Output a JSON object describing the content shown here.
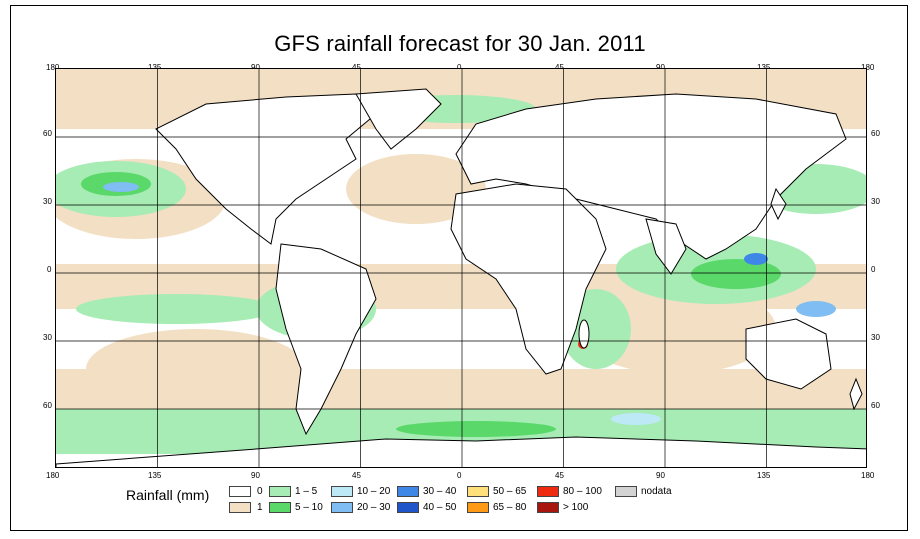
{
  "title": "GFS rainfall forecast for 30 Jan. 2011",
  "axes": {
    "lon_ticks_top": [
      "180",
      "135",
      "90",
      "45",
      "0",
      "45",
      "90",
      "135",
      "180"
    ],
    "lon_ticks_bottom": [
      "180",
      "135",
      "90",
      "45",
      "0",
      "45",
      "90",
      "135",
      "180"
    ],
    "lat_ticks_left": [
      "60",
      "30",
      "0",
      "30",
      "60"
    ],
    "lat_ticks_right": [
      "60",
      "30",
      "0",
      "30",
      "60"
    ]
  },
  "legend": {
    "title": "Rainfall (mm)",
    "items": [
      {
        "label": "0",
        "color": "#ffffff"
      },
      {
        "label": "1",
        "color": "#f2dfc4"
      },
      {
        "label": "1 – 5",
        "color": "#a6ecb4"
      },
      {
        "label": "5 – 10",
        "color": "#5ad86a"
      },
      {
        "label": "10 – 20",
        "color": "#bde9f7"
      },
      {
        "label": "20 – 30",
        "color": "#7fbdf2"
      },
      {
        "label": "30 – 40",
        "color": "#3f87e6"
      },
      {
        "label": "40 – 50",
        "color": "#1f55c8"
      },
      {
        "label": "50 – 65",
        "color": "#ffe07a"
      },
      {
        "label": "65 – 80",
        "color": "#ff9a16"
      },
      {
        "label": "80 – 100",
        "color": "#ee2a10"
      },
      {
        "label": "> 100",
        "color": "#a8150f"
      },
      {
        "label": "nodata",
        "color": "#d3d3d3"
      }
    ]
  },
  "colors": {
    "land_outline": "#000000",
    "gridline": "#000000",
    "trace": "#f2dfc4",
    "light": "#a6ecb4",
    "moderate": "#5ad86a",
    "heavy_light": "#bde9f7",
    "heavy": "#7fbdf2",
    "very_heavy": "#3f87e6",
    "extreme": "#ee2a10"
  }
}
